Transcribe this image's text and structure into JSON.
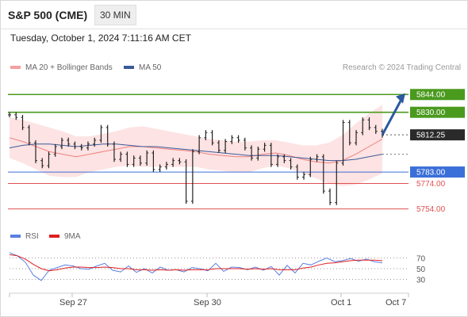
{
  "header": {
    "instrument": "S&P 500 (CME)",
    "interval": "30 MIN"
  },
  "datetime": "Tuesday, October 1, 2024 7:11:16 AM CET",
  "legend": {
    "bollinger": "MA 20 + Bollinger Bands",
    "ma50": "MA 50",
    "copyright": "Research © 2024 Trading Central"
  },
  "rsi_legend": {
    "rsi": "RSI",
    "ma9": "9MA"
  },
  "colors": {
    "resistance": "#4a9a1e",
    "support_blue": "#3b6fd8",
    "support_red": "#e05050",
    "bollinger_fill": "#fde3e3",
    "ma20": "#f08080",
    "ma50": "#3a5a9a",
    "price": "#222222",
    "arrow": "#2a5aa0",
    "rsi": "#5a7fe0",
    "rsi_ma": "#e02020"
  },
  "chart_data": [
    {
      "type": "line",
      "title": "S&P 500 (CME)",
      "x_ticks": [
        "Sep 27",
        "Sep 30",
        "Oct 1",
        "Oct 7"
      ],
      "y_range": [
        5745,
        5856
      ],
      "levels": [
        {
          "value": 5844.0,
          "label": "5844.00",
          "kind": "target"
        },
        {
          "value": 5830.0,
          "label": "5830.00",
          "kind": "resistance"
        },
        {
          "value": 5812.25,
          "label": "5812.25",
          "kind": "last"
        },
        {
          "value": 5783.0,
          "label": "5783.00",
          "kind": "pivot"
        },
        {
          "value": 5774.0,
          "label": "5774.00",
          "kind": "support"
        },
        {
          "value": 5754.0,
          "label": "5754.00",
          "kind": "support"
        }
      ],
      "series": [
        {
          "name": "MA 20 + Bollinger Bands",
          "values": [
            5810,
            5807,
            5803,
            5799,
            5797,
            5795,
            5797,
            5799,
            5801,
            5803,
            5803,
            5802,
            5801,
            5800,
            5799,
            5797,
            5796,
            5795,
            5795,
            5797,
            5798,
            5796,
            5793,
            5791,
            5790,
            5792,
            5797,
            5803,
            5809
          ]
        },
        {
          "name": "MA 50",
          "values": [
            5802,
            5804,
            5805,
            5805,
            5804,
            5803,
            5804,
            5805,
            5805,
            5804,
            5803,
            5803,
            5802,
            5801,
            5800,
            5799,
            5798,
            5797,
            5796,
            5796,
            5796,
            5795,
            5794,
            5793,
            5792,
            5792,
            5793,
            5795,
            5797
          ]
        },
        {
          "name": "Price",
          "values": [
            5828,
            5826,
            5818,
            5806,
            5792,
            5788,
            5797,
            5803,
            5808,
            5805,
            5803,
            5802,
            5805,
            5808,
            5818,
            5805,
            5793,
            5797,
            5789,
            5794,
            5790,
            5798,
            5785,
            5787,
            5789,
            5792,
            5791,
            5760,
            5799,
            5810,
            5814,
            5806,
            5800,
            5807,
            5810,
            5808,
            5802,
            5794,
            5801,
            5804,
            5789,
            5795,
            5792,
            5787,
            5779,
            5781,
            5793,
            5795,
            5768,
            5759,
            5790,
            5822,
            5806,
            5814,
            5824,
            5818,
            5815,
            5812
          ]
        }
      ]
    },
    {
      "type": "line",
      "title": "RSI",
      "y_ticks": [
        70,
        50,
        30
      ],
      "y_range": [
        10,
        90
      ],
      "series": [
        {
          "name": "RSI",
          "values": [
            80,
            74,
            62,
            38,
            28,
            47,
            52,
            57,
            55,
            50,
            49,
            55,
            60,
            47,
            44,
            55,
            43,
            50,
            42,
            53,
            47,
            48,
            44,
            52,
            50,
            46,
            60,
            45,
            53,
            52,
            48,
            53,
            47,
            54,
            38,
            56,
            42,
            60,
            57,
            64,
            70,
            63,
            65,
            69,
            64,
            68,
            63,
            61
          ]
        },
        {
          "name": "9MA",
          "values": [
            76,
            74,
            68,
            58,
            50,
            46,
            48,
            51,
            53,
            53,
            52,
            52,
            53,
            52,
            50,
            50,
            48,
            48,
            47,
            48,
            47,
            48,
            47,
            48,
            48,
            48,
            50,
            50,
            50,
            50,
            49,
            50,
            49,
            50,
            48,
            48,
            48,
            51,
            53,
            57,
            60,
            61,
            63,
            65,
            66,
            66,
            66,
            65
          ]
        }
      ]
    }
  ]
}
